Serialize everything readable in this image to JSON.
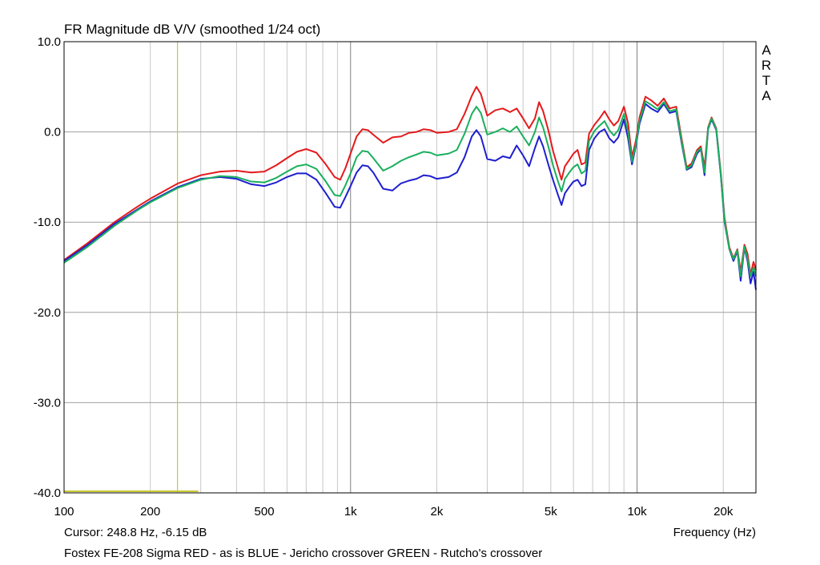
{
  "chart_data": {
    "type": "line",
    "title": "FR Magnitude dB V/V (smoothed 1/24 oct)",
    "xlabel": "Frequency (Hz)",
    "ylabel": "",
    "xscale": "log",
    "xlim": [
      100,
      26000
    ],
    "ylim": [
      -40,
      10
    ],
    "grid": true,
    "brand": [
      "A",
      "R",
      "T",
      "A"
    ],
    "cursor_text": "Cursor: 248.8 Hz, -6.15 dB",
    "cursor": {
      "x": 248.8,
      "y": -6.15
    },
    "footer": "Fostex FE-208 Sigma RED - as is BLUE - Jericho crossover GREEN - Rutcho's crossover",
    "y_ticks": [
      {
        "v": 10,
        "label": "10.0"
      },
      {
        "v": 0,
        "label": "0.0"
      },
      {
        "v": -10,
        "label": "-10.0"
      },
      {
        "v": -20,
        "label": "-20.0"
      },
      {
        "v": -30,
        "label": "-30.0"
      },
      {
        "v": -40,
        "label": "-40.0"
      }
    ],
    "x_ticks": [
      {
        "v": 100,
        "label": "100"
      },
      {
        "v": 200,
        "label": "200"
      },
      {
        "v": 500,
        "label": "500"
      },
      {
        "v": 1000,
        "label": "1k"
      },
      {
        "v": 2000,
        "label": "2k"
      },
      {
        "v": 5000,
        "label": "5k"
      },
      {
        "v": 10000,
        "label": "10k"
      },
      {
        "v": 20000,
        "label": "20k"
      }
    ],
    "colors": {
      "grid": "#a0a0a0",
      "cursor": "#c8c832"
    },
    "series": [
      {
        "name": "RED",
        "color": "#e41a1c",
        "points": [
          [
            100,
            -14.2
          ],
          [
            120,
            -12.4
          ],
          [
            150,
            -10.0
          ],
          [
            180,
            -8.3
          ],
          [
            200,
            -7.4
          ],
          [
            250,
            -5.7
          ],
          [
            300,
            -4.8
          ],
          [
            350,
            -4.4
          ],
          [
            400,
            -4.3
          ],
          [
            450,
            -4.5
          ],
          [
            500,
            -4.4
          ],
          [
            550,
            -3.7
          ],
          [
            600,
            -2.9
          ],
          [
            650,
            -2.2
          ],
          [
            700,
            -1.9
          ],
          [
            760,
            -2.3
          ],
          [
            820,
            -3.6
          ],
          [
            880,
            -5.0
          ],
          [
            920,
            -5.3
          ],
          [
            960,
            -4.0
          ],
          [
            1000,
            -2.4
          ],
          [
            1050,
            -0.5
          ],
          [
            1100,
            0.3
          ],
          [
            1150,
            0.2
          ],
          [
            1200,
            -0.3
          ],
          [
            1300,
            -1.2
          ],
          [
            1400,
            -0.6
          ],
          [
            1500,
            -0.5
          ],
          [
            1600,
            -0.1
          ],
          [
            1700,
            0.0
          ],
          [
            1800,
            0.3
          ],
          [
            1900,
            0.2
          ],
          [
            2000,
            -0.1
          ],
          [
            2200,
            0.0
          ],
          [
            2350,
            0.3
          ],
          [
            2500,
            2.0
          ],
          [
            2650,
            4.0
          ],
          [
            2750,
            5.0
          ],
          [
            2850,
            4.2
          ],
          [
            3000,
            1.8
          ],
          [
            3200,
            2.4
          ],
          [
            3400,
            2.6
          ],
          [
            3600,
            2.2
          ],
          [
            3800,
            2.6
          ],
          [
            4000,
            1.5
          ],
          [
            4200,
            0.4
          ],
          [
            4400,
            1.5
          ],
          [
            4550,
            3.3
          ],
          [
            4700,
            2.3
          ],
          [
            4900,
            0.2
          ],
          [
            5100,
            -2.2
          ],
          [
            5300,
            -4.0
          ],
          [
            5450,
            -5.3
          ],
          [
            5600,
            -3.8
          ],
          [
            5800,
            -3.1
          ],
          [
            6000,
            -2.4
          ],
          [
            6200,
            -2.0
          ],
          [
            6400,
            -3.6
          ],
          [
            6600,
            -3.4
          ],
          [
            6800,
            -0.2
          ],
          [
            7100,
            0.8
          ],
          [
            7400,
            1.5
          ],
          [
            7700,
            2.3
          ],
          [
            8000,
            1.4
          ],
          [
            8300,
            0.7
          ],
          [
            8600,
            1.2
          ],
          [
            9000,
            2.8
          ],
          [
            9300,
            1.0
          ],
          [
            9600,
            -2.8
          ],
          [
            9900,
            -1.0
          ],
          [
            10200,
            1.6
          ],
          [
            10700,
            3.9
          ],
          [
            11200,
            3.5
          ],
          [
            11800,
            2.9
          ],
          [
            12400,
            3.7
          ],
          [
            13000,
            2.6
          ],
          [
            13700,
            2.8
          ],
          [
            14300,
            -0.7
          ],
          [
            14900,
            -3.9
          ],
          [
            15500,
            -3.5
          ],
          [
            16200,
            -2.0
          ],
          [
            16700,
            -1.6
          ],
          [
            17200,
            -3.9
          ],
          [
            17700,
            0.5
          ],
          [
            18200,
            1.6
          ],
          [
            18900,
            0.4
          ],
          [
            19600,
            -4.5
          ],
          [
            20200,
            -9.5
          ],
          [
            21000,
            -12.8
          ],
          [
            21700,
            -14.0
          ],
          [
            22400,
            -13.0
          ],
          [
            23000,
            -15.5
          ],
          [
            23700,
            -12.5
          ],
          [
            24300,
            -13.5
          ],
          [
            24900,
            -15.8
          ],
          [
            25500,
            -14.4
          ],
          [
            26000,
            -15.3
          ]
        ]
      },
      {
        "name": "BLUE",
        "color": "#1f1fcf",
        "points": [
          [
            100,
            -14.3
          ],
          [
            120,
            -12.6
          ],
          [
            150,
            -10.2
          ],
          [
            180,
            -8.6
          ],
          [
            200,
            -7.7
          ],
          [
            250,
            -6.1
          ],
          [
            300,
            -5.2
          ],
          [
            350,
            -5.0
          ],
          [
            400,
            -5.2
          ],
          [
            450,
            -5.8
          ],
          [
            500,
            -6.0
          ],
          [
            550,
            -5.6
          ],
          [
            600,
            -5.0
          ],
          [
            650,
            -4.6
          ],
          [
            700,
            -4.6
          ],
          [
            760,
            -5.3
          ],
          [
            820,
            -6.8
          ],
          [
            880,
            -8.3
          ],
          [
            920,
            -8.4
          ],
          [
            960,
            -7.2
          ],
          [
            1000,
            -6.0
          ],
          [
            1050,
            -4.5
          ],
          [
            1100,
            -3.7
          ],
          [
            1150,
            -3.8
          ],
          [
            1200,
            -4.5
          ],
          [
            1300,
            -6.3
          ],
          [
            1400,
            -6.5
          ],
          [
            1500,
            -5.7
          ],
          [
            1600,
            -5.4
          ],
          [
            1700,
            -5.2
          ],
          [
            1800,
            -4.8
          ],
          [
            1900,
            -4.9
          ],
          [
            2000,
            -5.2
          ],
          [
            2200,
            -5.0
          ],
          [
            2350,
            -4.5
          ],
          [
            2500,
            -2.8
          ],
          [
            2650,
            -0.5
          ],
          [
            2750,
            0.2
          ],
          [
            2850,
            -0.5
          ],
          [
            3000,
            -3.0
          ],
          [
            3200,
            -3.2
          ],
          [
            3400,
            -2.7
          ],
          [
            3600,
            -2.9
          ],
          [
            3800,
            -1.5
          ],
          [
            4000,
            -2.6
          ],
          [
            4200,
            -3.8
          ],
          [
            4400,
            -1.8
          ],
          [
            4550,
            -0.5
          ],
          [
            4700,
            -1.6
          ],
          [
            4900,
            -3.6
          ],
          [
            5100,
            -5.4
          ],
          [
            5300,
            -7.0
          ],
          [
            5450,
            -8.1
          ],
          [
            5600,
            -6.8
          ],
          [
            5800,
            -6.1
          ],
          [
            6000,
            -5.5
          ],
          [
            6200,
            -5.3
          ],
          [
            6400,
            -6.0
          ],
          [
            6600,
            -5.8
          ],
          [
            6800,
            -2.0
          ],
          [
            7100,
            -0.7
          ],
          [
            7400,
            0.0
          ],
          [
            7700,
            0.3
          ],
          [
            8000,
            -0.7
          ],
          [
            8300,
            -1.2
          ],
          [
            8600,
            -0.6
          ],
          [
            9000,
            1.4
          ],
          [
            9300,
            -0.7
          ],
          [
            9600,
            -3.6
          ],
          [
            9900,
            -1.6
          ],
          [
            10200,
            0.9
          ],
          [
            10700,
            3.1
          ],
          [
            11200,
            2.6
          ],
          [
            11800,
            2.2
          ],
          [
            12400,
            3.1
          ],
          [
            13000,
            2.1
          ],
          [
            13700,
            2.3
          ],
          [
            14300,
            -1.2
          ],
          [
            14900,
            -4.2
          ],
          [
            15500,
            -3.9
          ],
          [
            16200,
            -2.4
          ],
          [
            16700,
            -1.9
          ],
          [
            17200,
            -4.8
          ],
          [
            17700,
            0.3
          ],
          [
            18200,
            1.4
          ],
          [
            18900,
            0.2
          ],
          [
            19600,
            -4.8
          ],
          [
            20200,
            -10.0
          ],
          [
            21000,
            -13.0
          ],
          [
            21700,
            -14.3
          ],
          [
            22400,
            -13.2
          ],
          [
            23000,
            -16.5
          ],
          [
            23700,
            -12.8
          ],
          [
            24300,
            -14.3
          ],
          [
            24900,
            -16.8
          ],
          [
            25500,
            -15.5
          ],
          [
            26000,
            -17.5
          ]
        ]
      },
      {
        "name": "GREEN",
        "color": "#1aaf5d",
        "points": [
          [
            100,
            -14.5
          ],
          [
            120,
            -12.8
          ],
          [
            150,
            -10.4
          ],
          [
            180,
            -8.7
          ],
          [
            200,
            -7.8
          ],
          [
            250,
            -6.2
          ],
          [
            300,
            -5.3
          ],
          [
            350,
            -4.9
          ],
          [
            400,
            -5.0
          ],
          [
            450,
            -5.5
          ],
          [
            500,
            -5.6
          ],
          [
            550,
            -5.1
          ],
          [
            600,
            -4.4
          ],
          [
            650,
            -3.8
          ],
          [
            700,
            -3.6
          ],
          [
            760,
            -4.1
          ],
          [
            820,
            -5.5
          ],
          [
            880,
            -7.0
          ],
          [
            920,
            -7.1
          ],
          [
            960,
            -5.9
          ],
          [
            1000,
            -4.6
          ],
          [
            1050,
            -2.8
          ],
          [
            1100,
            -2.1
          ],
          [
            1150,
            -2.2
          ],
          [
            1200,
            -2.9
          ],
          [
            1300,
            -4.3
          ],
          [
            1400,
            -3.8
          ],
          [
            1500,
            -3.2
          ],
          [
            1600,
            -2.8
          ],
          [
            1700,
            -2.5
          ],
          [
            1800,
            -2.2
          ],
          [
            1900,
            -2.3
          ],
          [
            2000,
            -2.6
          ],
          [
            2200,
            -2.4
          ],
          [
            2350,
            -2.0
          ],
          [
            2500,
            -0.2
          ],
          [
            2650,
            2.0
          ],
          [
            2750,
            2.8
          ],
          [
            2850,
            2.1
          ],
          [
            3000,
            -0.3
          ],
          [
            3200,
            0.0
          ],
          [
            3400,
            0.4
          ],
          [
            3600,
            0.0
          ],
          [
            3800,
            0.6
          ],
          [
            4000,
            -0.5
          ],
          [
            4200,
            -1.5
          ],
          [
            4400,
            0.0
          ],
          [
            4550,
            1.6
          ],
          [
            4700,
            0.5
          ],
          [
            4900,
            -1.6
          ],
          [
            5100,
            -3.8
          ],
          [
            5300,
            -5.5
          ],
          [
            5450,
            -6.6
          ],
          [
            5600,
            -5.2
          ],
          [
            5800,
            -4.5
          ],
          [
            6000,
            -3.9
          ],
          [
            6200,
            -3.6
          ],
          [
            6400,
            -4.6
          ],
          [
            6600,
            -4.3
          ],
          [
            6800,
            -1.0
          ],
          [
            7100,
            0.1
          ],
          [
            7400,
            0.7
          ],
          [
            7700,
            1.2
          ],
          [
            8000,
            0.2
          ],
          [
            8300,
            -0.4
          ],
          [
            8600,
            0.2
          ],
          [
            9000,
            2.0
          ],
          [
            9300,
            0.0
          ],
          [
            9600,
            -3.3
          ],
          [
            9900,
            -1.4
          ],
          [
            10200,
            1.2
          ],
          [
            10700,
            3.4
          ],
          [
            11200,
            3.0
          ],
          [
            11800,
            2.5
          ],
          [
            12400,
            3.3
          ],
          [
            13000,
            2.3
          ],
          [
            13700,
            2.5
          ],
          [
            14300,
            -1.0
          ],
          [
            14900,
            -4.1
          ],
          [
            15500,
            -3.7
          ],
          [
            16200,
            -2.2
          ],
          [
            16700,
            -1.8
          ],
          [
            17200,
            -4.5
          ],
          [
            17700,
            0.4
          ],
          [
            18200,
            1.5
          ],
          [
            18900,
            0.3
          ],
          [
            19600,
            -4.7
          ],
          [
            20200,
            -9.8
          ],
          [
            21000,
            -13.0
          ],
          [
            21700,
            -14.1
          ],
          [
            22400,
            -13.1
          ],
          [
            23000,
            -16.0
          ],
          [
            23700,
            -12.7
          ],
          [
            24300,
            -14.0
          ],
          [
            24900,
            -16.0
          ],
          [
            25500,
            -15.0
          ],
          [
            26000,
            -16.0
          ]
        ]
      }
    ]
  }
}
